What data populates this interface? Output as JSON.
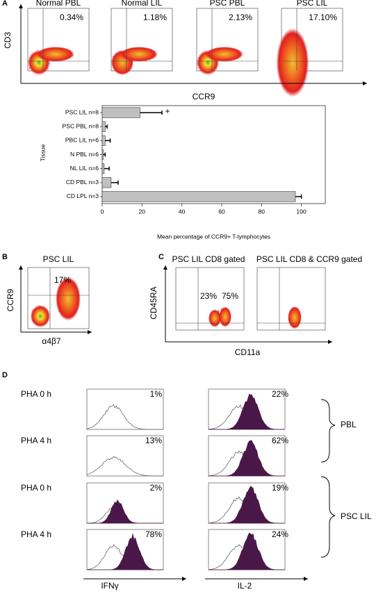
{
  "panel_labels": [
    "A",
    "B",
    "C",
    "D"
  ],
  "panel_a": {
    "plots": [
      {
        "title": "Normal PBL",
        "percent": "0.34%"
      },
      {
        "title": "Normal LIL",
        "percent": "1.18%"
      },
      {
        "title": "PSC PBL",
        "percent": "2.13%"
      },
      {
        "title": "PSC LIL",
        "percent": "17.10%"
      }
    ],
    "y_axis": "CD3",
    "x_axis": "CCR9"
  },
  "chart_data": {
    "type": "bar",
    "orientation": "horizontal",
    "categories": [
      "PSC LIL n=8",
      "PSC PBL n=8",
      "PBC LIL n=6",
      "N PBL n=6",
      "NL LIL n=6",
      "CD PBL n=3",
      "CD LPL n=3"
    ],
    "values": [
      19,
      1.5,
      1.5,
      0.5,
      1,
      4.5,
      97
    ],
    "errors": [
      11,
      1,
      2.5,
      1,
      2.5,
      3.5,
      3
    ],
    "annotation": "+",
    "xlabel": "Mean percentage of CCR9+ T-lymphocytes",
    "ylabel": "Tissue",
    "xlim": [
      0,
      112
    ],
    "xticks": [
      0,
      20,
      40,
      60,
      80,
      100
    ],
    "color": "#c0c0c0"
  },
  "panel_b": {
    "title": "PSC LIL",
    "percent": "17%",
    "y_axis": "CCR9",
    "x_axis": "α4β7"
  },
  "panel_c": {
    "plots": [
      {
        "title": "PSC LIL CD8 gated",
        "percents": [
          "23%",
          "75%"
        ]
      },
      {
        "title": "PSC LIL CD8 & CCR9 gated"
      }
    ],
    "y_axis": "CD45RA",
    "x_axis": "CD11a"
  },
  "panel_d": {
    "rows": [
      "PHA 0 h",
      "PHA 4 h",
      "PHA 0 h",
      "PHA 4 h"
    ],
    "columns": [
      "IFNγ",
      "IL-2"
    ],
    "percents": [
      [
        "1%",
        "22%"
      ],
      [
        "13%",
        "62%"
      ],
      [
        "2%",
        "19%"
      ],
      [
        "78%",
        "24%"
      ]
    ],
    "groups": [
      "PBL",
      "PSC LIL"
    ]
  }
}
